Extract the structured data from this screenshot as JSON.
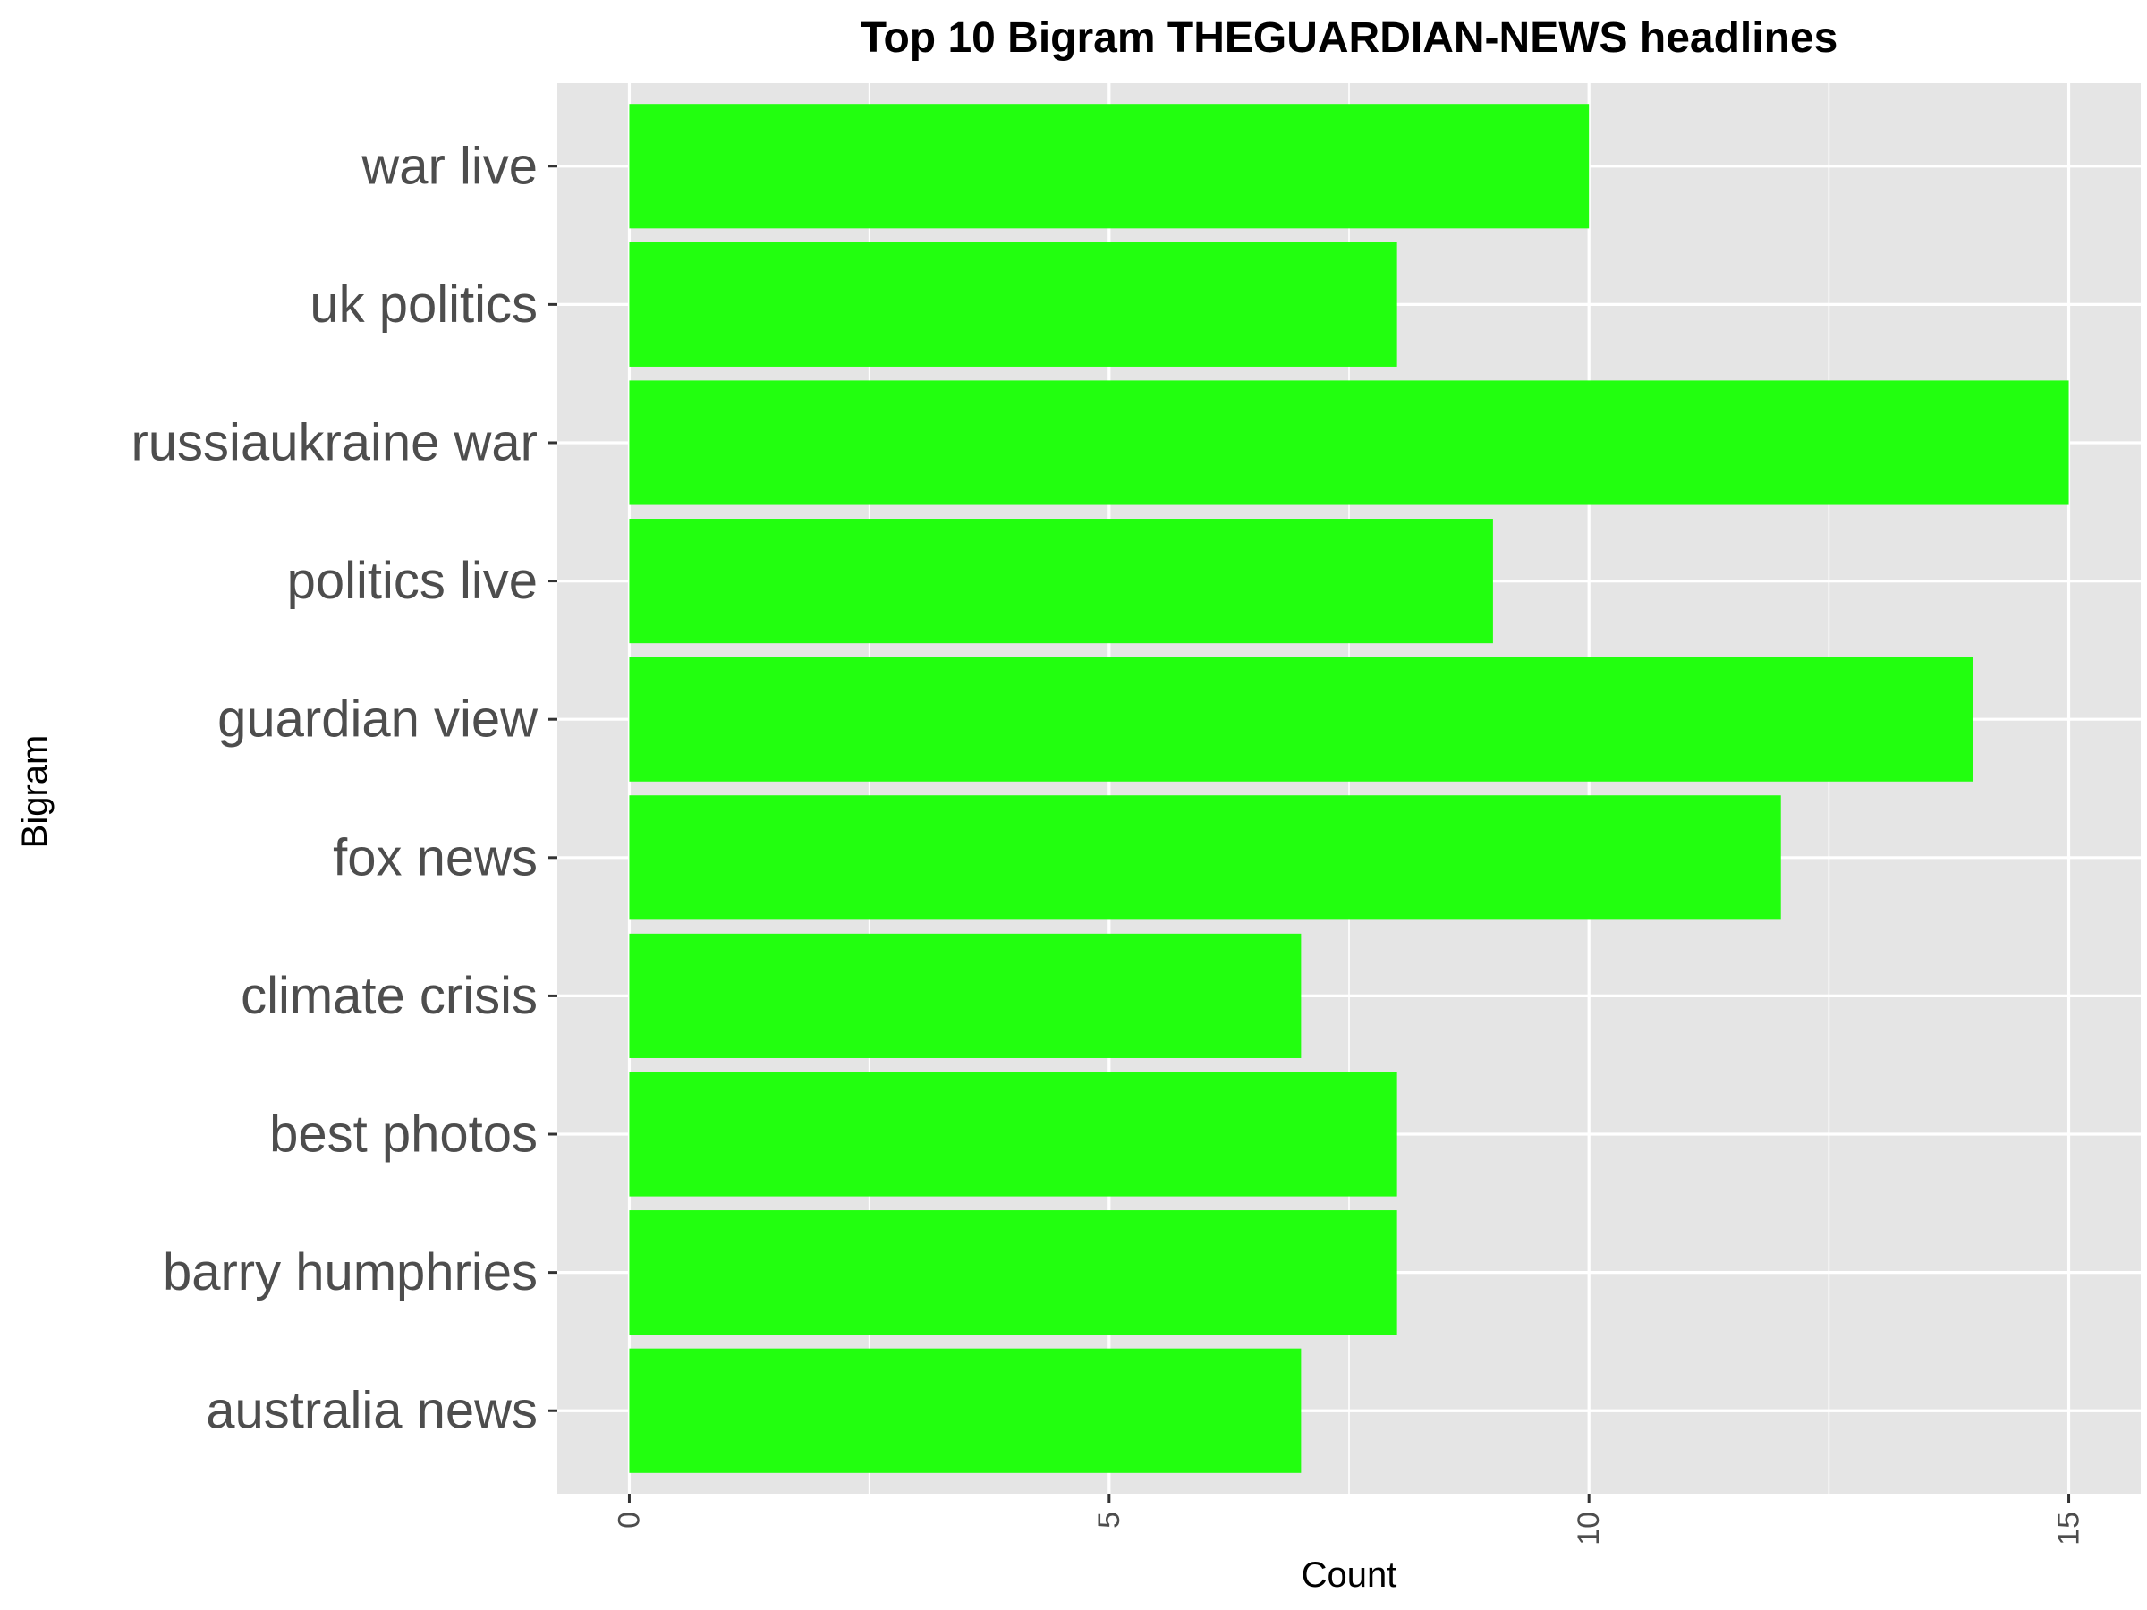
{
  "chart_data": {
    "type": "bar",
    "orientation": "horizontal",
    "title": "Top 10 Bigram THEGUARDIAN-NEWS headlines",
    "xlabel": "Count",
    "ylabel": "Bigram",
    "categories": [
      "australia news",
      "barry humphries",
      "best photos",
      "climate crisis",
      "fox news",
      "guardian view",
      "politics live",
      "russiaukraine war",
      "uk politics",
      "war live"
    ],
    "values": [
      7,
      8,
      8,
      7,
      12,
      14,
      9,
      15,
      8,
      10
    ],
    "xlim": [
      -0.75,
      15.75
    ],
    "x_ticks": [
      0,
      5,
      10,
      15
    ],
    "x_tick_labels": [
      "0",
      "5",
      "10",
      "15"
    ],
    "grid": true,
    "legend": "none",
    "bar_color": "#22ff0f",
    "panel_background": "#e5e5e5",
    "grid_color": "#ffffff"
  }
}
